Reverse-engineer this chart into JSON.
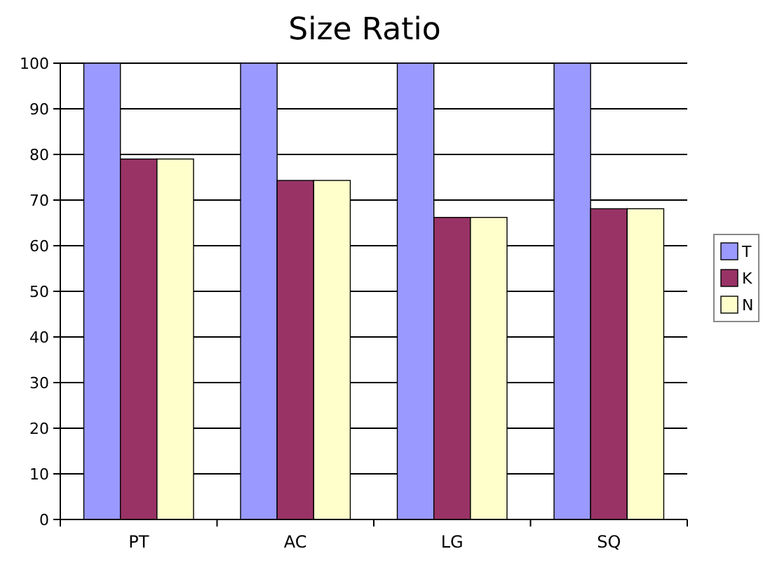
{
  "chart_data": {
    "type": "bar",
    "title": "Size Ratio",
    "categories": [
      "PT",
      "AC",
      "LG",
      "SQ"
    ],
    "series": [
      {
        "name": "T",
        "color": "#9999ff",
        "values": [
          100,
          100,
          100,
          100
        ]
      },
      {
        "name": "K",
        "color": "#993366",
        "values": [
          79,
          74.3,
          66.2,
          68.1
        ]
      },
      {
        "name": "N",
        "color": "#ffffcc",
        "values": [
          79,
          74.3,
          66.2,
          68.1
        ]
      }
    ],
    "ylim": [
      0,
      100
    ],
    "yticks": [
      0,
      10,
      20,
      30,
      40,
      50,
      60,
      70,
      80,
      90,
      100
    ],
    "grid": "y",
    "legend": "right"
  }
}
